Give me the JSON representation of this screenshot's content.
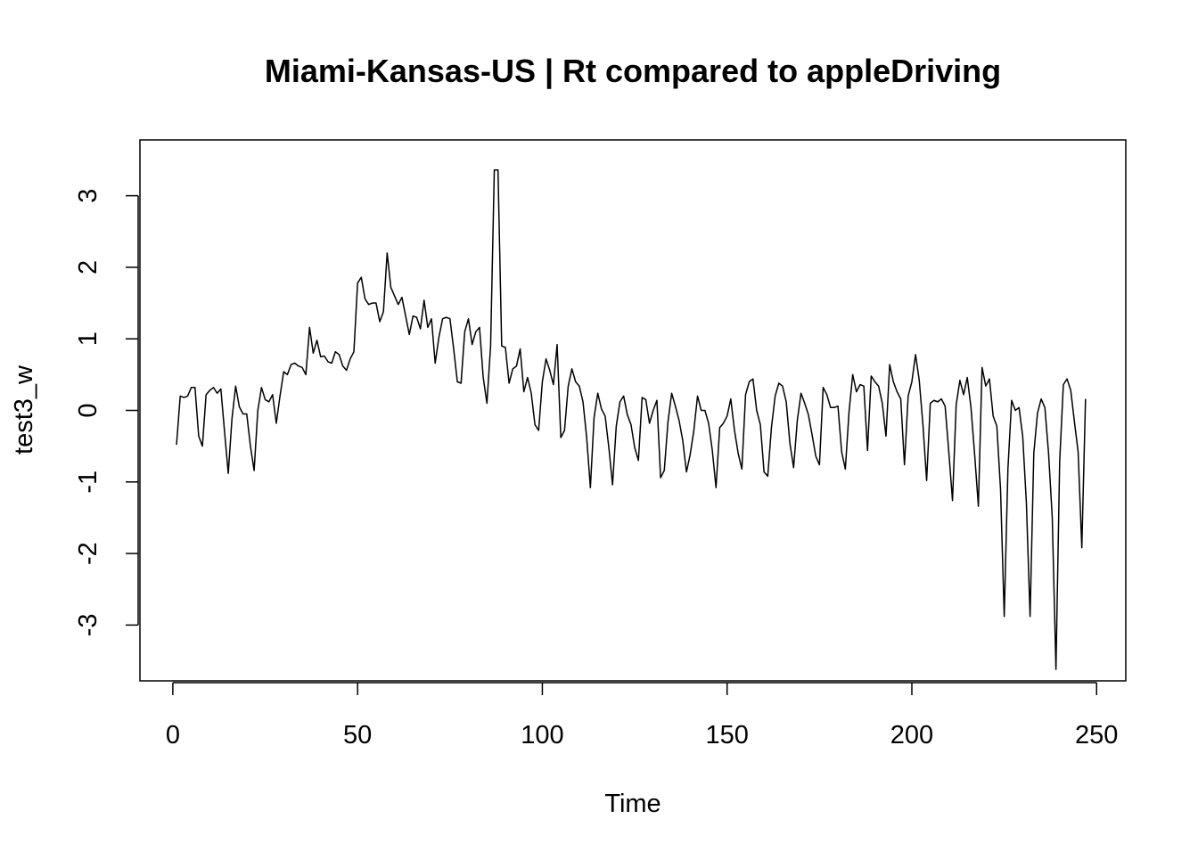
{
  "chart_data": {
    "type": "line",
    "title": "Miami-Kansas-US | Rt compared to appleDriving",
    "xlabel": "Time",
    "ylabel": "test3_w",
    "xlim": [
      -8.9,
      257.9
    ],
    "ylim": [
      -3.78,
      3.78
    ],
    "x_ticks": [
      0,
      50,
      100,
      150,
      200,
      250
    ],
    "x_tick_labels": [
      "0",
      "50",
      "100",
      "150",
      "200",
      "250"
    ],
    "y_ticks": [
      -3,
      -2,
      -1,
      0,
      1,
      2,
      3
    ],
    "y_tick_labels": [
      "-3",
      "-2",
      "-1",
      "0",
      "1",
      "2",
      "3"
    ],
    "grid": false,
    "legend": "none",
    "line_color": "#000000",
    "x_start": 1,
    "series": [
      {
        "values": [
          -0.48,
          0.2,
          0.18,
          0.2,
          0.32,
          0.32,
          -0.36,
          -0.5,
          0.22,
          0.28,
          0.32,
          0.24,
          0.3,
          -0.3,
          -0.88,
          -0.12,
          0.34,
          0.05,
          -0.05,
          -0.05,
          -0.5,
          -0.84,
          0.0,
          0.32,
          0.15,
          0.12,
          0.22,
          -0.18,
          0.2,
          0.54,
          0.5,
          0.64,
          0.66,
          0.62,
          0.6,
          0.5,
          1.16,
          0.8,
          0.98,
          0.75,
          0.76,
          0.68,
          0.66,
          0.82,
          0.78,
          0.62,
          0.56,
          0.72,
          0.82,
          1.78,
          1.86,
          1.56,
          1.48,
          1.5,
          1.5,
          1.24,
          1.38,
          2.2,
          1.72,
          1.6,
          1.48,
          1.58,
          1.32,
          1.06,
          1.32,
          1.3,
          1.14,
          1.54,
          1.16,
          1.28,
          0.66,
          1.02,
          1.28,
          1.3,
          1.28,
          0.86,
          0.4,
          0.38,
          1.1,
          1.28,
          0.92,
          1.1,
          1.16,
          0.46,
          0.1,
          0.9,
          3.36,
          3.36,
          0.9,
          0.88,
          0.38,
          0.58,
          0.62,
          0.86,
          0.26,
          0.46,
          0.24,
          -0.2,
          -0.28,
          0.4,
          0.72,
          0.56,
          0.36,
          0.92,
          -0.38,
          -0.28,
          0.34,
          0.58,
          0.4,
          0.34,
          0.12,
          -0.38,
          -1.08,
          -0.1,
          0.24,
          0.02,
          -0.08,
          -0.52,
          -1.04,
          -0.22,
          0.12,
          0.2,
          -0.06,
          -0.2,
          -0.52,
          -0.7,
          0.18,
          0.15,
          -0.18,
          0.0,
          0.14,
          -0.94,
          -0.84,
          -0.16,
          0.24,
          0.06,
          -0.14,
          -0.42,
          -0.86,
          -0.62,
          -0.28,
          0.2,
          0.0,
          0.0,
          -0.18,
          -0.56,
          -1.08,
          -0.24,
          -0.18,
          -0.08,
          0.16,
          -0.28,
          -0.6,
          -0.82,
          0.22,
          0.4,
          0.44,
          0.0,
          -0.2,
          -0.86,
          -0.92,
          -0.24,
          0.2,
          0.38,
          0.34,
          0.12,
          -0.46,
          -0.8,
          -0.14,
          0.24,
          0.1,
          -0.06,
          -0.34,
          -0.64,
          -0.76,
          0.32,
          0.22,
          0.04,
          0.04,
          0.06,
          -0.58,
          -0.82,
          -0.02,
          0.5,
          0.26,
          0.36,
          0.34,
          -0.56,
          0.48,
          0.4,
          0.34,
          0.1,
          -0.36,
          0.64,
          0.4,
          0.26,
          0.16,
          -0.76,
          0.2,
          0.4,
          0.78,
          0.42,
          -0.2,
          -0.98,
          0.1,
          0.14,
          0.12,
          0.16,
          0.06,
          -0.58,
          -1.26,
          0.08,
          0.42,
          0.22,
          0.46,
          0.04,
          -0.62,
          -1.34,
          0.6,
          0.34,
          0.44,
          -0.08,
          -0.22,
          -1.1,
          -2.88,
          -0.82,
          0.14,
          0.0,
          0.04,
          -0.36,
          -1.3,
          -2.88,
          -0.6,
          -0.04,
          0.16,
          0.04,
          -0.6,
          -1.5,
          -3.62,
          -0.72,
          0.36,
          0.44,
          0.28,
          -0.16,
          -0.58,
          -1.92,
          0.16
        ]
      }
    ]
  }
}
